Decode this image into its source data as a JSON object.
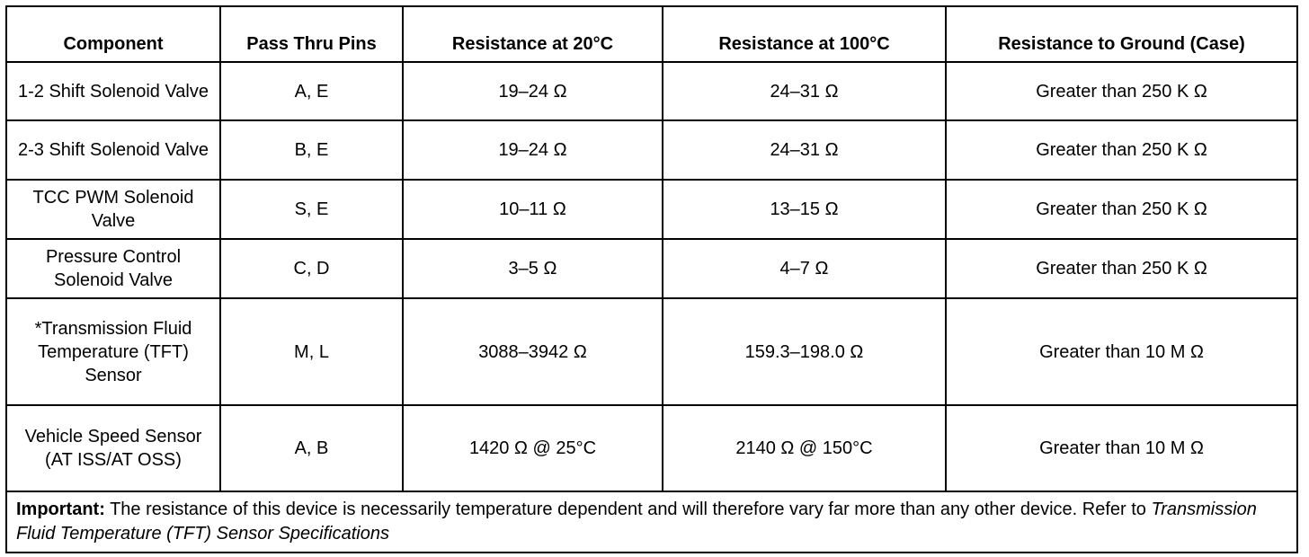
{
  "table": {
    "header": [
      "Component",
      "Pass Thru Pins",
      "Resistance at 20°C",
      "Resistance at 100°C",
      "Resistance to Ground (Case)"
    ],
    "rows": [
      [
        "1-2 Shift Solenoid Valve",
        "A, E",
        "19–24 Ω",
        "24–31 Ω",
        "Greater than 250 K Ω"
      ],
      [
        "2-3 Shift Solenoid Valve",
        "B, E",
        "19–24 Ω",
        "24–31 Ω",
        "Greater than 250 K Ω"
      ],
      [
        "TCC PWM Solenoid Valve",
        "S, E",
        "10–11 Ω",
        "13–15 Ω",
        "Greater than 250 K Ω"
      ],
      [
        "Pressure Control Solenoid Valve",
        "C, D",
        "3–5 Ω",
        "4–7 Ω",
        "Greater than 250 K Ω"
      ],
      [
        "*Transmission Fluid Temperature (TFT) Sensor",
        "M, L",
        "3088–3942 Ω",
        "159.3–198.0 Ω",
        "Greater than 10 M Ω"
      ],
      [
        "Vehicle Speed Sensor (AT ISS/AT OSS)",
        "A, B",
        "1420 Ω @ 25°C",
        "2140 Ω @ 150°C",
        "Greater than 10 M Ω"
      ]
    ],
    "note": {
      "label": "Important:",
      "text": "The resistance of this device is necessarily temperature dependent and will therefore vary far more than any other device. Refer to",
      "reference": "Transmission Fluid Temperature (TFT) Sensor Specifications"
    }
  }
}
